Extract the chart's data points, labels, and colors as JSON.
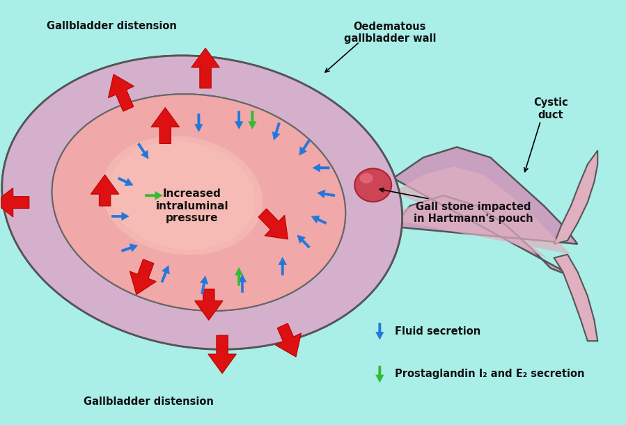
{
  "bg_color": "#aaeee8",
  "wall_outer_color": "#c8a0c8",
  "wall_inner_color": "#d4b0cc",
  "lumen_color_center": "#f5a0a0",
  "lumen_color_edge": "#e8b0b8",
  "duct_color": "#c8a0c0",
  "duct_inner_color": "#e0b0c0",
  "stone_color": "#cc4455",
  "stone_edge": "#aa2233",
  "arrow_red": "#dd1111",
  "arrow_blue": "#2277dd",
  "arrow_green": "#33bb33",
  "text_color": "#111111",
  "label_fluid": "Fluid secretion",
  "label_prostaglandin": "Prostaglandin I₂ and E₂ secretion",
  "label_pressure": "Increased\nintraluminal\npressure",
  "label_distension_top": "Gallbladder distension",
  "label_distension_bottom": "Gallbladder distension",
  "label_oedematous": "Oedematous\ngallbladder wall",
  "label_cystic": "Cystic\nduct",
  "label_gallstone": "Gall stone impacted\nin Hartmann's pouch"
}
